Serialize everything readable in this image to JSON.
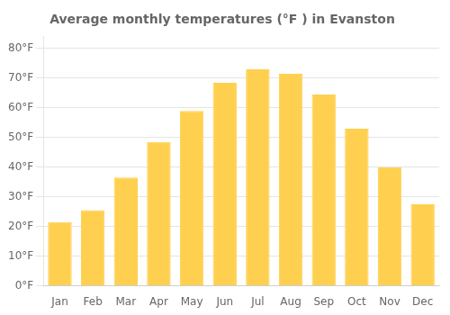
{
  "chart_data": {
    "type": "bar",
    "title": "Average monthly temperatures (°F ) in Evanston",
    "categories": [
      "Jan",
      "Feb",
      "Mar",
      "Apr",
      "May",
      "Jun",
      "Jul",
      "Aug",
      "Sep",
      "Oct",
      "Nov",
      "Dec"
    ],
    "values": [
      21.5,
      25.5,
      36.5,
      48.5,
      59.0,
      68.5,
      73.0,
      71.5,
      64.5,
      53.0,
      40.0,
      27.5
    ],
    "color": "#FFD050",
    "ylim": [
      0,
      84
    ],
    "yticks": [
      {
        "value": 0,
        "label": "0°F"
      },
      {
        "value": 10,
        "label": "10°F"
      },
      {
        "value": 20,
        "label": "20°F"
      },
      {
        "value": 30,
        "label": "30°F"
      },
      {
        "value": 40,
        "label": "40°F"
      },
      {
        "value": 50,
        "label": "50°F"
      },
      {
        "value": 60,
        "label": "60°F"
      },
      {
        "value": 70,
        "label": "70°F"
      },
      {
        "value": 80,
        "label": "80°F"
      }
    ],
    "grid": true
  }
}
